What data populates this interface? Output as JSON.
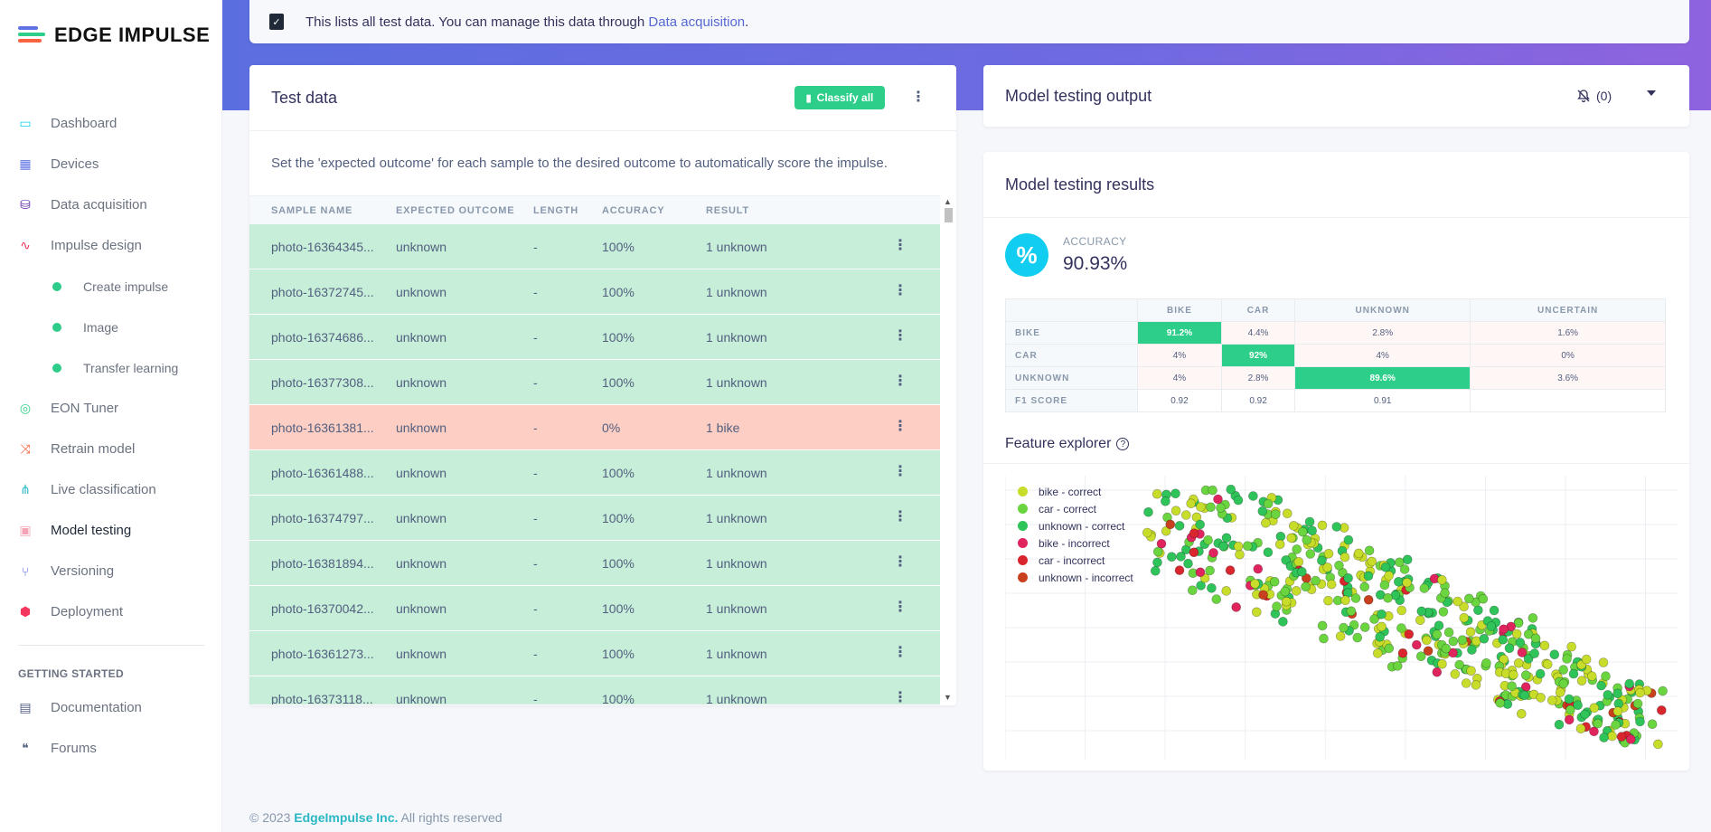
{
  "brand": {
    "name": "EDGE IMPULSE"
  },
  "nav": {
    "items": [
      {
        "label": "Dashboard",
        "icon": "monitor-icon",
        "color": "#11cdef"
      },
      {
        "label": "Devices",
        "icon": "chip-icon",
        "color": "#5e72e4"
      },
      {
        "label": "Data acquisition",
        "icon": "database-icon",
        "color": "#5e2ca5"
      },
      {
        "label": "Impulse design",
        "icon": "pulse-icon",
        "color": "#f5365c"
      }
    ],
    "sub": [
      "Create impulse",
      "Image",
      "Transfer learning"
    ],
    "items2": [
      {
        "label": "EON Tuner",
        "icon": "compass-icon",
        "color": "#2dce89"
      },
      {
        "label": "Retrain model",
        "icon": "shuffle-icon",
        "color": "#fb6340"
      },
      {
        "label": "Live classification",
        "icon": "network-icon",
        "color": "#2bb8c4"
      },
      {
        "label": "Model testing",
        "icon": "clipboard-check-icon",
        "color": "#f3a4b5"
      },
      {
        "label": "Versioning",
        "icon": "branch-icon",
        "color": "#5e72e4"
      },
      {
        "label": "Deployment",
        "icon": "cube-icon",
        "color": "#f5365c"
      }
    ],
    "heading": "GETTING STARTED",
    "items3": [
      {
        "label": "Documentation",
        "icon": "book-icon",
        "color": "#525f7f"
      },
      {
        "label": "Forums",
        "icon": "chat-icon",
        "color": "#525f7f"
      }
    ]
  },
  "info": {
    "text": "This lists all test data. You can manage this data through ",
    "link": "Data acquisition",
    "suffix": "."
  },
  "test_data": {
    "title": "Test data",
    "classify_label": "Classify all",
    "description": "Set the 'expected outcome' for each sample to the desired outcome to automatically score the impulse.",
    "columns": [
      "SAMPLE NAME",
      "EXPECTED OUTCOME",
      "LENGTH",
      "ACCURACY",
      "RESULT"
    ],
    "rows": [
      {
        "name": "photo-16364345...",
        "expected": "unknown",
        "length": "-",
        "accuracy": "100%",
        "result": "1 unknown",
        "status": "ok"
      },
      {
        "name": "photo-16372745...",
        "expected": "unknown",
        "length": "-",
        "accuracy": "100%",
        "result": "1 unknown",
        "status": "ok"
      },
      {
        "name": "photo-16374686...",
        "expected": "unknown",
        "length": "-",
        "accuracy": "100%",
        "result": "1 unknown",
        "status": "ok"
      },
      {
        "name": "photo-16377308...",
        "expected": "unknown",
        "length": "-",
        "accuracy": "100%",
        "result": "1 unknown",
        "status": "ok"
      },
      {
        "name": "photo-16361381...",
        "expected": "unknown",
        "length": "-",
        "accuracy": "0%",
        "result": "1 bike",
        "status": "bad"
      },
      {
        "name": "photo-16361488...",
        "expected": "unknown",
        "length": "-",
        "accuracy": "100%",
        "result": "1 unknown",
        "status": "ok"
      },
      {
        "name": "photo-16374797...",
        "expected": "unknown",
        "length": "-",
        "accuracy": "100%",
        "result": "1 unknown",
        "status": "ok"
      },
      {
        "name": "photo-16381894...",
        "expected": "unknown",
        "length": "-",
        "accuracy": "100%",
        "result": "1 unknown",
        "status": "ok"
      },
      {
        "name": "photo-16370042...",
        "expected": "unknown",
        "length": "-",
        "accuracy": "100%",
        "result": "1 unknown",
        "status": "ok"
      },
      {
        "name": "photo-16361273...",
        "expected": "unknown",
        "length": "-",
        "accuracy": "100%",
        "result": "1 unknown",
        "status": "ok"
      },
      {
        "name": "photo-16373118...",
        "expected": "unknown",
        "length": "-",
        "accuracy": "100%",
        "result": "1 unknown",
        "status": "ok"
      }
    ]
  },
  "output": {
    "title": "Model testing output",
    "notifications": "(0)"
  },
  "results": {
    "title": "Model testing results",
    "accuracy_label": "ACCURACY",
    "accuracy_value": "90.93%",
    "confusion": {
      "columns": [
        "BIKE",
        "CAR",
        "UNKNOWN",
        "UNCERTAIN"
      ],
      "rows": [
        {
          "label": "BIKE",
          "values": [
            "91.2%",
            "4.4%",
            "2.8%",
            "1.6%"
          ],
          "diag": 0
        },
        {
          "label": "CAR",
          "values": [
            "4%",
            "92%",
            "4%",
            "0%"
          ],
          "diag": 1
        },
        {
          "label": "UNKNOWN",
          "values": [
            "4%",
            "2.8%",
            "89.6%",
            "3.6%"
          ],
          "diag": 2
        },
        {
          "label": "F1 SCORE",
          "values": [
            "0.92",
            "0.92",
            "0.91",
            ""
          ],
          "diag": -1
        }
      ]
    },
    "feature_explorer": {
      "title": "Feature explorer",
      "legend": [
        {
          "label": "bike - correct",
          "color": "#c8dc2a"
        },
        {
          "label": "car - correct",
          "color": "#6ad53e"
        },
        {
          "label": "unknown - correct",
          "color": "#2ec45a"
        },
        {
          "label": "bike - incorrect",
          "color": "#e0245e"
        },
        {
          "label": "car - incorrect",
          "color": "#d9262e"
        },
        {
          "label": "unknown - incorrect",
          "color": "#c8401e"
        }
      ]
    }
  },
  "footer": {
    "copy": "© 2023 ",
    "company": "EdgeImpulse Inc.",
    "rights": " All rights reserved"
  }
}
